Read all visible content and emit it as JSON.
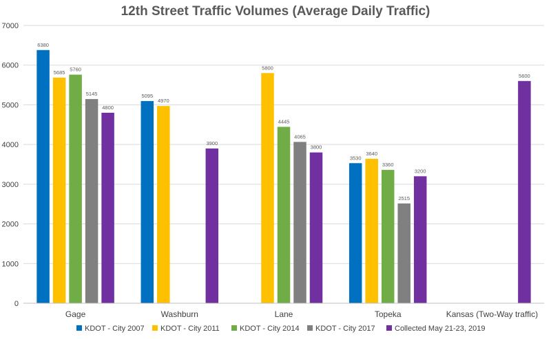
{
  "chart_data": {
    "type": "bar",
    "title": "12th Street Traffic Volumes (Average Daily Traffic)",
    "xlabel": "",
    "ylabel": "",
    "ylim": [
      0,
      7000
    ],
    "yticks": [
      0,
      1000,
      2000,
      3000,
      4000,
      5000,
      6000,
      7000
    ],
    "grid": true,
    "legend_position": "bottom",
    "categories": [
      "Gage",
      "Washburn",
      "Lane",
      "Topeka",
      "Kansas (Two-Way traffic)"
    ],
    "series": [
      {
        "name": "KDOT - City 2007",
        "color": "#0070c0",
        "values": [
          6380,
          5095,
          null,
          3530,
          null
        ]
      },
      {
        "name": "KDOT - City  2011",
        "color": "#ffc000",
        "values": [
          5685,
          4970,
          5800,
          3640,
          null
        ]
      },
      {
        "name": "KDOT - City 2014",
        "color": "#70ad47",
        "values": [
          5760,
          null,
          4445,
          3360,
          null
        ]
      },
      {
        "name": "KDOT - City 2017",
        "color": "#808080",
        "values": [
          5145,
          null,
          4065,
          2515,
          null
        ]
      },
      {
        "name": "Collected May 21-23, 2019",
        "color": "#7030a0",
        "values": [
          4800,
          3900,
          3800,
          3200,
          5600
        ]
      }
    ]
  }
}
